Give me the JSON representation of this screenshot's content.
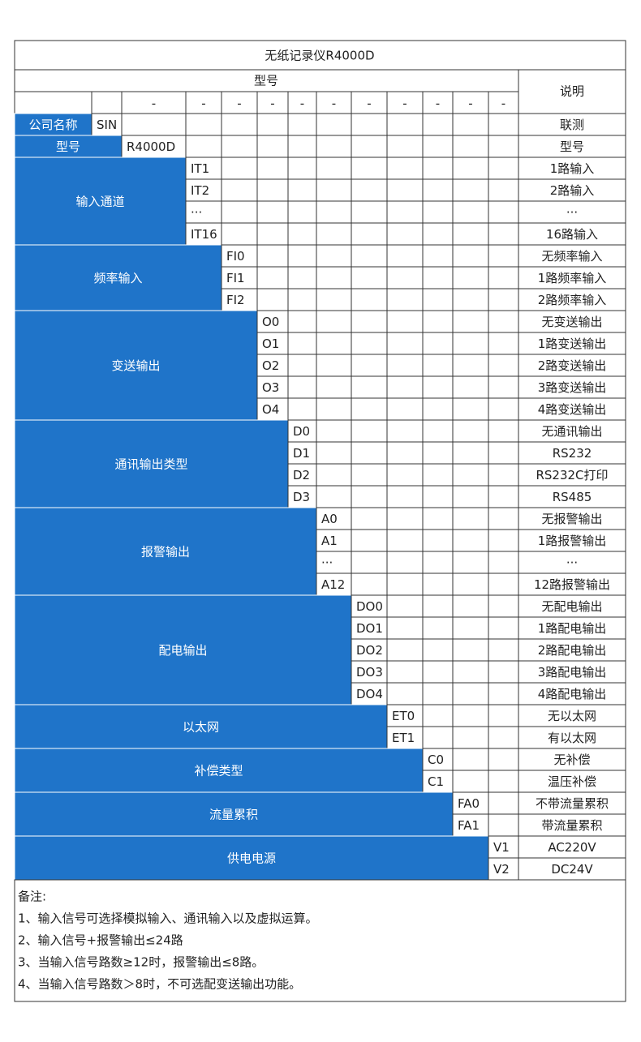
{
  "title": "无纸记录仪R4000D",
  "header": {
    "model": "型号",
    "description": "说明",
    "dashes": [
      "-",
      "-",
      "-",
      "-",
      "-",
      "-",
      "-",
      "-",
      "-",
      "-",
      "-"
    ]
  },
  "groups": [
    {
      "label": "公司名称",
      "rows": [
        {
          "code": "SIN",
          "description": "联测"
        }
      ]
    },
    {
      "label": "型号",
      "rows": [
        {
          "code": "R4000D",
          "description": "型号"
        }
      ]
    },
    {
      "label": "输入通道",
      "rows": [
        {
          "code": "IT1",
          "description": "1路输入"
        },
        {
          "code": "IT2",
          "description": "2路输入"
        },
        {
          "code": "···",
          "description": "···"
        },
        {
          "code": "IT16",
          "description": "16路输入"
        }
      ]
    },
    {
      "label": "频率输入",
      "rows": [
        {
          "code": "FI0",
          "description": "无频率输入"
        },
        {
          "code": "FI1",
          "description": "1路频率输入"
        },
        {
          "code": "FI2",
          "description": "2路频率输入"
        }
      ]
    },
    {
      "label": "变送输出",
      "rows": [
        {
          "code": "O0",
          "description": "无变送输出"
        },
        {
          "code": "O1",
          "description": "1路变送输出"
        },
        {
          "code": "O2",
          "description": "2路变送输出"
        },
        {
          "code": "O3",
          "description": "3路变送输出"
        },
        {
          "code": "O4",
          "description": "4路变送输出"
        }
      ]
    },
    {
      "label": "通讯输出类型",
      "rows": [
        {
          "code": "D0",
          "description": "无通讯输出"
        },
        {
          "code": "D1",
          "description": "RS232"
        },
        {
          "code": "D2",
          "description": "RS232C打印"
        },
        {
          "code": "D3",
          "description": "RS485"
        }
      ]
    },
    {
      "label": "报警输出",
      "rows": [
        {
          "code": "A0",
          "description": "无报警输出"
        },
        {
          "code": "A1",
          "description": "1路报警输出"
        },
        {
          "code": "···",
          "description": "···"
        },
        {
          "code": "A12",
          "description": "12路报警输出"
        }
      ]
    },
    {
      "label": "配电输出",
      "rows": [
        {
          "code": "DO0",
          "description": "无配电输出"
        },
        {
          "code": "DO1",
          "description": "1路配电输出"
        },
        {
          "code": "DO2",
          "description": "2路配电输出"
        },
        {
          "code": "DO3",
          "description": "3路配电输出"
        },
        {
          "code": "DO4",
          "description": "4路配电输出"
        }
      ]
    },
    {
      "label": "以太网",
      "rows": [
        {
          "code": "ET0",
          "description": "无以太网"
        },
        {
          "code": "ET1",
          "description": "有以太网"
        }
      ]
    },
    {
      "label": "补偿类型",
      "rows": [
        {
          "code": "C0",
          "description": "无补偿"
        },
        {
          "code": "C1",
          "description": "温压补偿"
        }
      ]
    },
    {
      "label": "流量累积",
      "rows": [
        {
          "code": "FA0",
          "description": "不带流量累积"
        },
        {
          "code": "FA1",
          "description": "带流量累积"
        }
      ]
    },
    {
      "label": "供电电源",
      "rows": [
        {
          "code": "V1",
          "description": "AC220V"
        },
        {
          "code": "V2",
          "description": "DC24V"
        }
      ]
    }
  ],
  "notes": {
    "title": "备注:",
    "items": [
      "1、输入信号可选择模拟输入、通讯输入以及虚拟运算。",
      "2、输入信号+报警输出≤24路",
      "3、当输入信号路数≥12时，报警输出≤8路。",
      "4、当输入信号路数＞8时，不可选配变送输出功能。"
    ]
  }
}
